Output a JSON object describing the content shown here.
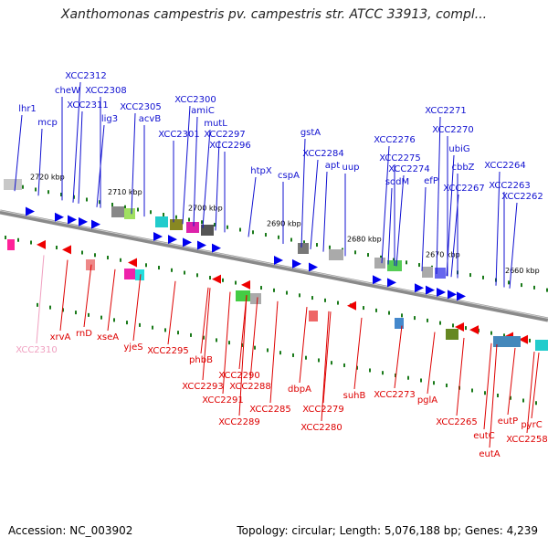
{
  "title": "Xanthomonas campestris pv. campestris str. ATCC 33913, compl...",
  "footer": {
    "accession": "Accession: NC_003902",
    "topology": "Topology: circular; Length: 5,076,188 bp; Genes: 4,239"
  },
  "colors": {
    "forward_label": "#1010d0",
    "reverse_label": "#dd0000",
    "pseudo_label": "#f0a0c0",
    "backbone": "#8a8a8a",
    "forward_arrow": "#0000ee",
    "reverse_arrow": "#ee0000"
  },
  "scale_ticks": [
    "2720 kbp",
    "2710 kbp",
    "2700 kbp",
    "2690 kbp",
    "2680 kbp",
    "2670 kbp",
    "2660 kbp"
  ],
  "forward_genes": [
    "lhr1",
    "mcp",
    "cheW",
    "XCC2312",
    "XCC2311",
    "XCC2308",
    "lig3",
    "XCC2305",
    "acvB",
    "XCC2300",
    "amiC",
    "XCC2301",
    "mutL",
    "XCC2297",
    "XCC2296",
    "htpX",
    "gstA",
    "cspA",
    "XCC2284",
    "apt",
    "uup",
    "XCC2276",
    "sodM",
    "XCC2275",
    "XCC2274",
    "XCC2271",
    "XCC2270",
    "ubiG",
    "efP",
    "cbbZ",
    "XCC2267",
    "XCC2264",
    "XCC2263",
    "XCC2262"
  ],
  "reverse_genes": [
    "XCC2310",
    "xrvA",
    "rnD",
    "xseA",
    "yjeS",
    "XCC2295",
    "phbB",
    "XCC2293",
    "XCC2290",
    "XCC2291",
    "XCC2288",
    "XCC2289",
    "XCC2285",
    "dbpA",
    "XCC2279",
    "XCC2280",
    "suhB",
    "XCC2273",
    "pglA",
    "XCC2265",
    "eutC",
    "eutP",
    "eutA",
    "pyrC",
    "XCC2258"
  ]
}
